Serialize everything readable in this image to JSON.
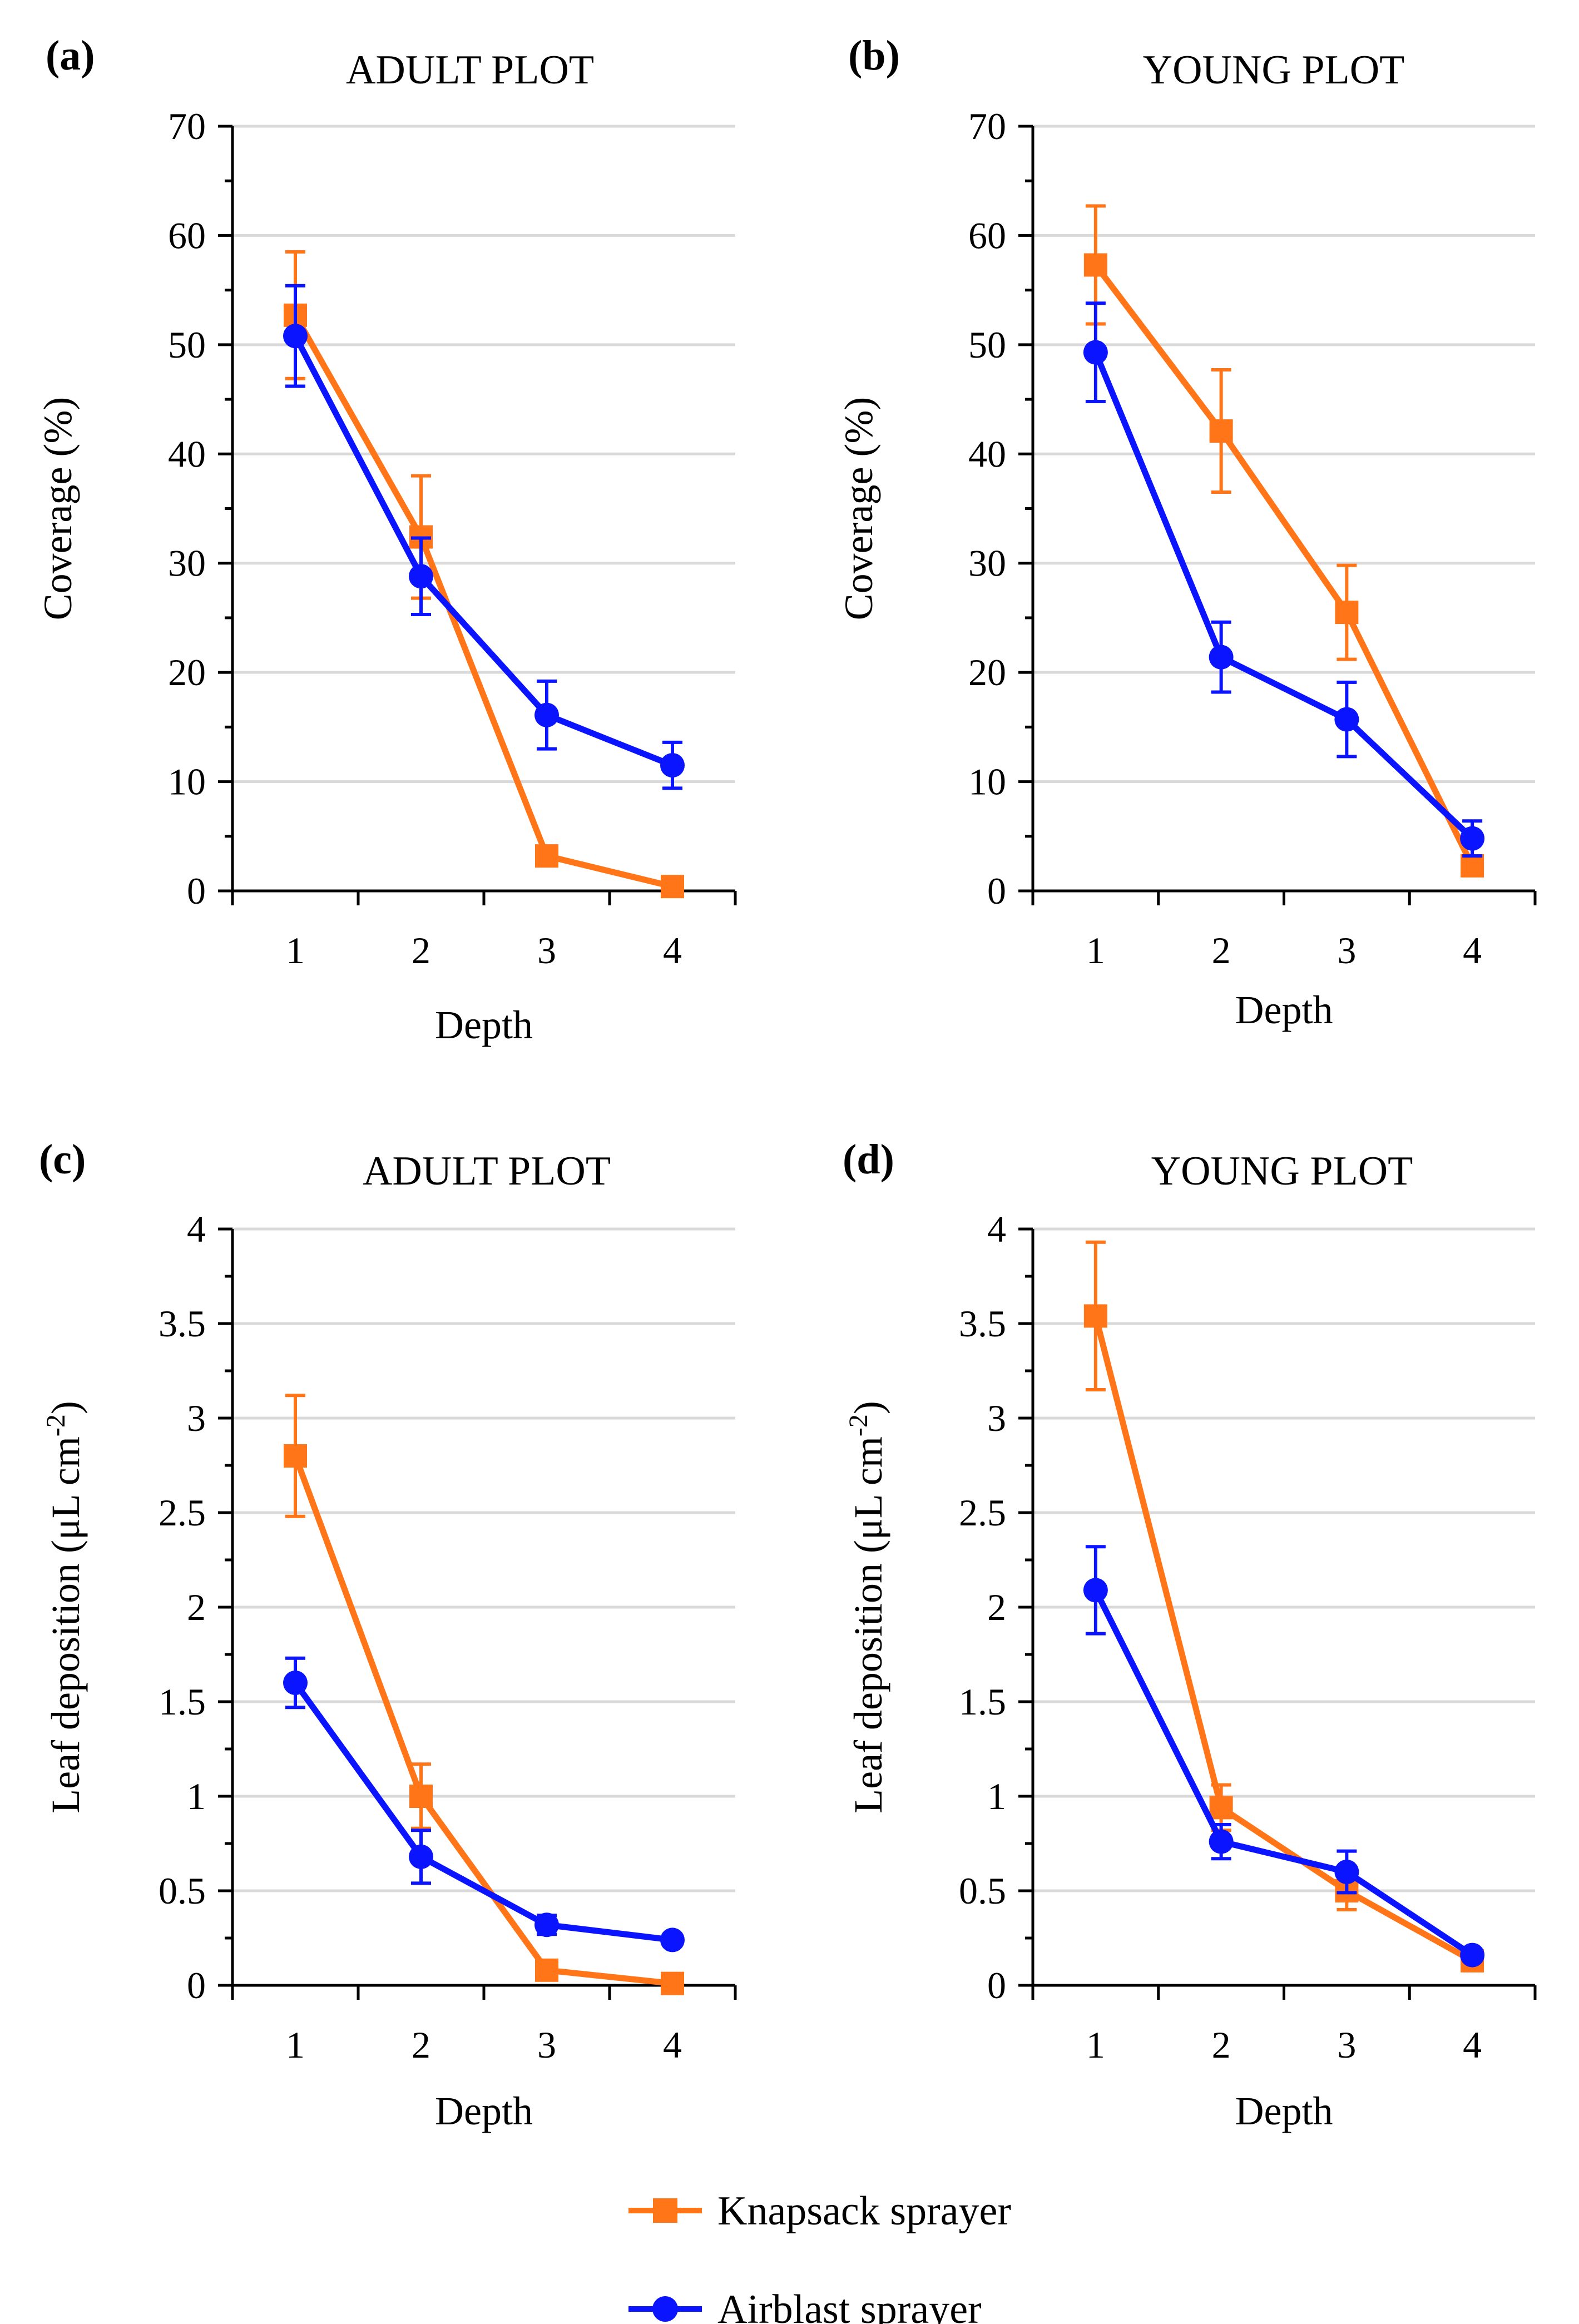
{
  "legend": {
    "items": [
      {
        "label": "Knapsack sprayer",
        "color": "#ff7518",
        "marker": "square"
      },
      {
        "label": "Airblast sprayer",
        "color": "#0a14ff",
        "marker": "circle"
      }
    ]
  },
  "chart_data": [
    {
      "type": "line",
      "panel_label": "(a)",
      "title": "ADULT PLOT",
      "xlabel": "Depth",
      "ylabel": "Coverage (%)",
      "ylabel_superscript": "",
      "ylabel_tail": "",
      "categories": [
        "1",
        "2",
        "3",
        "4"
      ],
      "ylim": [
        0,
        70
      ],
      "yticks": [
        "0",
        "10",
        "20",
        "30",
        "40",
        "50",
        "60",
        "70"
      ],
      "series": [
        {
          "name": "Knapsack sprayer",
          "color": "#ff7518",
          "marker": "square",
          "values": [
            52.7,
            32.4,
            3.2,
            0.4
          ],
          "errors": [
            5.8,
            5.6,
            0.6,
            0.3
          ]
        },
        {
          "name": "Airblast sprayer",
          "color": "#0a14ff",
          "marker": "circle",
          "values": [
            50.8,
            28.8,
            16.1,
            11.5
          ],
          "errors": [
            4.6,
            3.5,
            3.1,
            2.1
          ]
        }
      ]
    },
    {
      "type": "line",
      "panel_label": "(b)",
      "title": "YOUNG PLOT",
      "xlabel": "Depth",
      "ylabel": "Coverage (%)",
      "ylabel_superscript": "",
      "ylabel_tail": "",
      "categories": [
        "1",
        "2",
        "3",
        "4"
      ],
      "ylim": [
        0,
        70
      ],
      "yticks": [
        "0",
        "10",
        "20",
        "30",
        "40",
        "50",
        "60",
        "70"
      ],
      "series": [
        {
          "name": "Knapsack sprayer",
          "color": "#ff7518",
          "marker": "square",
          "values": [
            57.3,
            42.1,
            25.5,
            2.3
          ],
          "errors": [
            5.4,
            5.6,
            4.3,
            0.5
          ]
        },
        {
          "name": "Airblast sprayer",
          "color": "#0a14ff",
          "marker": "circle",
          "values": [
            49.3,
            21.4,
            15.7,
            4.8
          ],
          "errors": [
            4.5,
            3.2,
            3.4,
            1.6
          ]
        }
      ]
    },
    {
      "type": "line",
      "panel_label": "(c)",
      "title": "ADULT PLOT",
      "xlabel": "Depth",
      "ylabel": "Leaf deposition (μL cm",
      "ylabel_superscript": "-2",
      "ylabel_tail": ")",
      "categories": [
        "1",
        "2",
        "3",
        "4"
      ],
      "ylim": [
        0,
        4
      ],
      "yticks": [
        "0",
        "0.5",
        "1",
        "1.5",
        "2",
        "2.5",
        "3",
        "3.5",
        "4"
      ],
      "series": [
        {
          "name": "Knapsack sprayer",
          "color": "#ff7518",
          "marker": "square",
          "values": [
            2.8,
            1.0,
            0.08,
            0.01
          ],
          "errors": [
            0.32,
            0.17,
            0.02,
            0.01
          ]
        },
        {
          "name": "Airblast sprayer",
          "color": "#0a14ff",
          "marker": "circle",
          "values": [
            1.6,
            0.68,
            0.32,
            0.24
          ],
          "errors": [
            0.13,
            0.14,
            0.05,
            0.03
          ]
        }
      ]
    },
    {
      "type": "line",
      "panel_label": "(d)",
      "title": "YOUNG PLOT",
      "xlabel": "Depth",
      "ylabel": "Leaf deposition (μL cm",
      "ylabel_superscript": "-2",
      "ylabel_tail": ")",
      "categories": [
        "1",
        "2",
        "3",
        "4"
      ],
      "ylim": [
        0,
        4
      ],
      "yticks": [
        "0",
        "0.5",
        "1",
        "1.5",
        "2",
        "2.5",
        "3",
        "3.5",
        "4"
      ],
      "series": [
        {
          "name": "Knapsack sprayer",
          "color": "#ff7518",
          "marker": "square",
          "values": [
            3.54,
            0.94,
            0.5,
            0.13
          ],
          "errors": [
            0.39,
            0.12,
            0.1,
            0.03
          ]
        },
        {
          "name": "Airblast sprayer",
          "color": "#0a14ff",
          "marker": "circle",
          "values": [
            2.09,
            0.76,
            0.6,
            0.16
          ],
          "errors": [
            0.23,
            0.09,
            0.11,
            0.03
          ]
        }
      ]
    }
  ]
}
